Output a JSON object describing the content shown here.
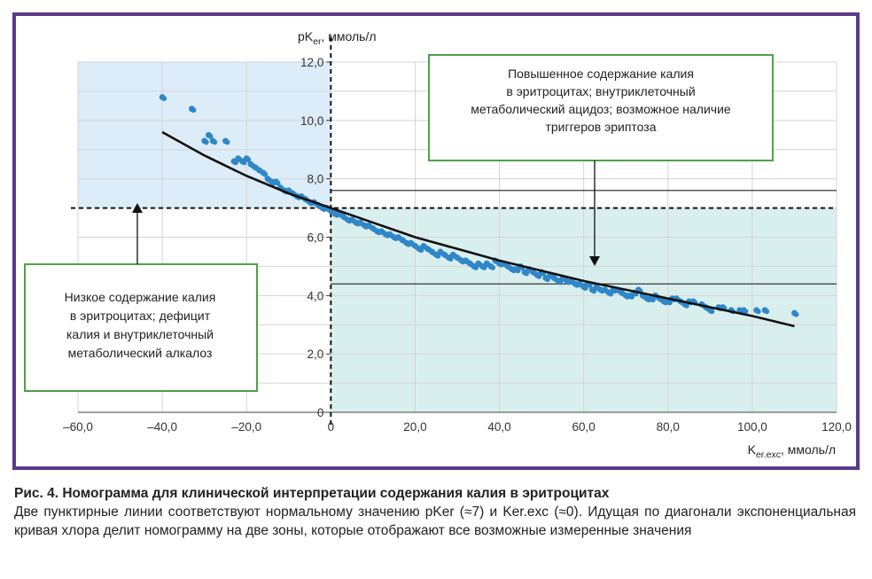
{
  "chart_data": {
    "type": "scatter",
    "x_label": "K",
    "x_label_sub": "er.exc",
    "x_label_unit": ", ммоль/л",
    "y_label": "pK",
    "y_label_sub": "er",
    "y_label_unit": ", ммоль/л",
    "xlim": [
      -60,
      120
    ],
    "ylim": [
      0,
      12
    ],
    "x_ticks": [
      -60,
      -40,
      -20,
      0,
      20,
      40,
      60,
      80,
      100,
      120
    ],
    "x_tick_labels": [
      "–60,0",
      "–40,0",
      "–20,0",
      "0",
      "20,0",
      "40,0",
      "60,0",
      "80,0",
      "100,0",
      "120,0"
    ],
    "y_ticks": [
      0,
      2,
      4,
      6,
      8,
      10,
      12
    ],
    "y_tick_labels": [
      "0",
      "2,0",
      "4,0",
      "6,0",
      "8,0",
      "10,0",
      "12,0"
    ],
    "grid": true,
    "normal_pK": 7.0,
    "normal_K": 0,
    "ref_lines": [
      7.6,
      4.4
    ],
    "curve": {
      "x": [
        -40,
        -30,
        -20,
        -10,
        0,
        10,
        20,
        30,
        40,
        50,
        60,
        70,
        80,
        90,
        100,
        110
      ],
      "y": [
        9.6,
        8.8,
        8.1,
        7.5,
        7.0,
        6.5,
        6.0,
        5.6,
        5.2,
        4.85,
        4.5,
        4.2,
        3.9,
        3.6,
        3.3,
        2.95
      ]
    },
    "points": {
      "x": [
        -40,
        -33,
        -30,
        -29,
        -28,
        -25,
        -23,
        -22,
        -21,
        -20,
        -19,
        -18,
        -17,
        -16,
        -15,
        -14,
        -13,
        -12,
        -11,
        -10,
        -9,
        -8,
        -7,
        -6,
        -5,
        -4,
        -3,
        -2,
        -1,
        0,
        1,
        2,
        3,
        4,
        5,
        6,
        7,
        8,
        9,
        10,
        11,
        12,
        13,
        14,
        15,
        16,
        17,
        18,
        19,
        20,
        21,
        22,
        23,
        24,
        25,
        26,
        27,
        28,
        29,
        30,
        31,
        32,
        33,
        34,
        35,
        36,
        37,
        38,
        39,
        40,
        41,
        42,
        43,
        44,
        45,
        46,
        47,
        48,
        49,
        50,
        51,
        52,
        53,
        54,
        55,
        56,
        57,
        58,
        59,
        60,
        61,
        62,
        63,
        64,
        65,
        66,
        67,
        68,
        69,
        70,
        71,
        72,
        73,
        74,
        75,
        76,
        77,
        78,
        79,
        80,
        81,
        82,
        83,
        84,
        85,
        86,
        88,
        89,
        90,
        92,
        93,
        95,
        97,
        98,
        101,
        103,
        110
      ],
      "y": [
        10.8,
        10.4,
        9.3,
        9.5,
        9.3,
        9.3,
        8.6,
        8.7,
        8.6,
        8.7,
        8.5,
        8.4,
        8.3,
        8.2,
        8.0,
        7.9,
        7.9,
        7.7,
        7.6,
        7.6,
        7.5,
        7.4,
        7.4,
        7.3,
        7.2,
        7.2,
        7.1,
        7.0,
        7.0,
        6.9,
        6.8,
        6.8,
        6.7,
        6.6,
        6.6,
        6.5,
        6.5,
        6.4,
        6.4,
        6.3,
        6.2,
        6.2,
        6.1,
        6.1,
        6.0,
        6.0,
        5.9,
        5.8,
        5.8,
        5.7,
        5.6,
        5.7,
        5.6,
        5.5,
        5.4,
        5.5,
        5.4,
        5.3,
        5.4,
        5.3,
        5.2,
        5.2,
        5.1,
        5.0,
        5.1,
        5.0,
        5.1,
        5.0,
        5.2,
        5.1,
        5.1,
        5.0,
        4.9,
        4.9,
        5.0,
        4.8,
        4.9,
        4.8,
        4.7,
        4.8,
        4.6,
        4.7,
        4.6,
        4.5,
        4.6,
        4.5,
        4.5,
        4.4,
        4.4,
        4.3,
        4.4,
        4.2,
        4.3,
        4.2,
        4.2,
        4.1,
        4.2,
        4.2,
        4.1,
        4.0,
        4.0,
        4.1,
        4.2,
        4.0,
        3.9,
        3.9,
        4.0,
        3.9,
        3.8,
        3.8,
        3.9,
        3.9,
        3.8,
        3.7,
        3.8,
        3.8,
        3.7,
        3.6,
        3.5,
        3.6,
        3.6,
        3.5,
        3.5,
        3.5,
        3.5,
        3.5,
        3.4
      ]
    }
  },
  "annotations": {
    "high": [
      "Повышенное содержание калия",
      "в эритроцитах; внутриклеточный",
      "метаболический ацидоз; возможное наличие",
      "триггеров эриптоза"
    ],
    "low": [
      "Низкое содержание калия",
      "в эритроцитах; дефицит",
      "калия и внутриклеточный",
      "метаболический алкалоз"
    ]
  },
  "caption": {
    "title": "Рис. 4. Номограмма для клинической интерпретации содержания калия в эритроцитах",
    "text": "Две пунктирные линии соответствуют нормальному значению pKer (≈7) и Ker.exc (≈0). Идущая по диагонали экспоненциальная кривая хлора делит номограмму на две зоны, которые отображают все возможные измеренные значения"
  },
  "colors": {
    "frame": "#5b3a8c",
    "zone_blue": "#dcecf8",
    "zone_teal": "#d9efee",
    "points": "#2f86c8",
    "box_border": "#4ca24a"
  }
}
